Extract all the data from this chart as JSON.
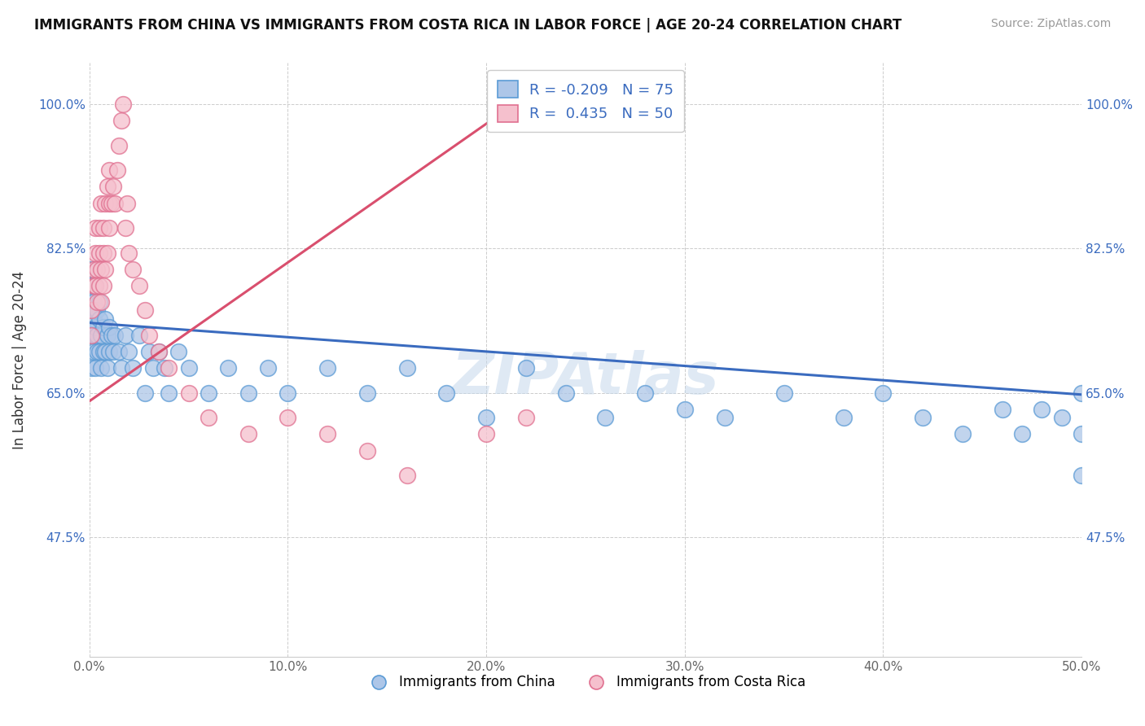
{
  "title": "IMMIGRANTS FROM CHINA VS IMMIGRANTS FROM COSTA RICA IN LABOR FORCE | AGE 20-24 CORRELATION CHART",
  "source": "Source: ZipAtlas.com",
  "ylabel": "In Labor Force | Age 20-24",
  "xmin": 0.0,
  "xmax": 0.5,
  "ymin": 0.33,
  "ymax": 1.05,
  "yticks": [
    0.475,
    0.65,
    0.825,
    1.0
  ],
  "ytick_labels": [
    "47.5%",
    "65.0%",
    "82.5%",
    "100.0%"
  ],
  "xticks": [
    0.0,
    0.1,
    0.2,
    0.3,
    0.4,
    0.5
  ],
  "xtick_labels": [
    "0.0%",
    "10.0%",
    "20.0%",
    "30.0%",
    "40.0%",
    "50.0%"
  ],
  "china_R": -0.209,
  "china_N": 75,
  "costarica_R": 0.435,
  "costarica_N": 50,
  "china_color": "#adc6e8",
  "china_edge_color": "#5b9bd5",
  "costarica_color": "#f5c0cd",
  "costarica_edge_color": "#e07090",
  "china_line_color": "#3a6bbf",
  "costarica_line_color": "#d94f6e",
  "watermark": "ZIPAtlas",
  "china_x": [
    0.001,
    0.001,
    0.001,
    0.001,
    0.001,
    0.002,
    0.002,
    0.002,
    0.002,
    0.003,
    0.003,
    0.003,
    0.003,
    0.003,
    0.004,
    0.004,
    0.004,
    0.005,
    0.005,
    0.005,
    0.006,
    0.006,
    0.007,
    0.007,
    0.008,
    0.008,
    0.009,
    0.009,
    0.01,
    0.01,
    0.011,
    0.012,
    0.013,
    0.015,
    0.016,
    0.018,
    0.02,
    0.022,
    0.025,
    0.028,
    0.03,
    0.032,
    0.035,
    0.038,
    0.04,
    0.045,
    0.05,
    0.06,
    0.07,
    0.08,
    0.09,
    0.1,
    0.12,
    0.14,
    0.16,
    0.18,
    0.2,
    0.22,
    0.24,
    0.26,
    0.28,
    0.3,
    0.32,
    0.35,
    0.38,
    0.4,
    0.42,
    0.44,
    0.46,
    0.47,
    0.48,
    0.49,
    0.5,
    0.5,
    0.5
  ],
  "china_y": [
    0.75,
    0.78,
    0.72,
    0.8,
    0.68,
    0.74,
    0.76,
    0.7,
    0.72,
    0.75,
    0.78,
    0.72,
    0.68,
    0.73,
    0.72,
    0.75,
    0.7,
    0.74,
    0.7,
    0.76,
    0.72,
    0.68,
    0.73,
    0.7,
    0.74,
    0.7,
    0.72,
    0.68,
    0.73,
    0.7,
    0.72,
    0.7,
    0.72,
    0.7,
    0.68,
    0.72,
    0.7,
    0.68,
    0.72,
    0.65,
    0.7,
    0.68,
    0.7,
    0.68,
    0.65,
    0.7,
    0.68,
    0.65,
    0.68,
    0.65,
    0.68,
    0.65,
    0.68,
    0.65,
    0.68,
    0.65,
    0.62,
    0.68,
    0.65,
    0.62,
    0.65,
    0.63,
    0.62,
    0.65,
    0.62,
    0.65,
    0.62,
    0.6,
    0.63,
    0.6,
    0.63,
    0.62,
    0.65,
    0.6,
    0.55
  ],
  "costarica_x": [
    0.001,
    0.001,
    0.002,
    0.002,
    0.003,
    0.003,
    0.003,
    0.004,
    0.004,
    0.005,
    0.005,
    0.005,
    0.006,
    0.006,
    0.006,
    0.007,
    0.007,
    0.007,
    0.008,
    0.008,
    0.009,
    0.009,
    0.01,
    0.01,
    0.01,
    0.011,
    0.012,
    0.013,
    0.014,
    0.015,
    0.016,
    0.017,
    0.018,
    0.019,
    0.02,
    0.022,
    0.025,
    0.028,
    0.03,
    0.035,
    0.04,
    0.05,
    0.06,
    0.08,
    0.1,
    0.12,
    0.14,
    0.16,
    0.2,
    0.22
  ],
  "costarica_y": [
    0.75,
    0.72,
    0.8,
    0.78,
    0.82,
    0.85,
    0.78,
    0.8,
    0.76,
    0.82,
    0.78,
    0.85,
    0.8,
    0.76,
    0.88,
    0.82,
    0.78,
    0.85,
    0.8,
    0.88,
    0.82,
    0.9,
    0.88,
    0.85,
    0.92,
    0.88,
    0.9,
    0.88,
    0.92,
    0.95,
    0.98,
    1.0,
    0.85,
    0.88,
    0.82,
    0.8,
    0.78,
    0.75,
    0.72,
    0.7,
    0.68,
    0.65,
    0.62,
    0.6,
    0.62,
    0.6,
    0.58,
    0.55,
    0.6,
    0.62
  ],
  "china_trend_x": [
    0.0,
    0.5
  ],
  "china_trend_y": [
    0.735,
    0.648
  ],
  "costarica_trend_x": [
    0.0,
    0.22
  ],
  "costarica_trend_y": [
    0.64,
    1.01
  ]
}
